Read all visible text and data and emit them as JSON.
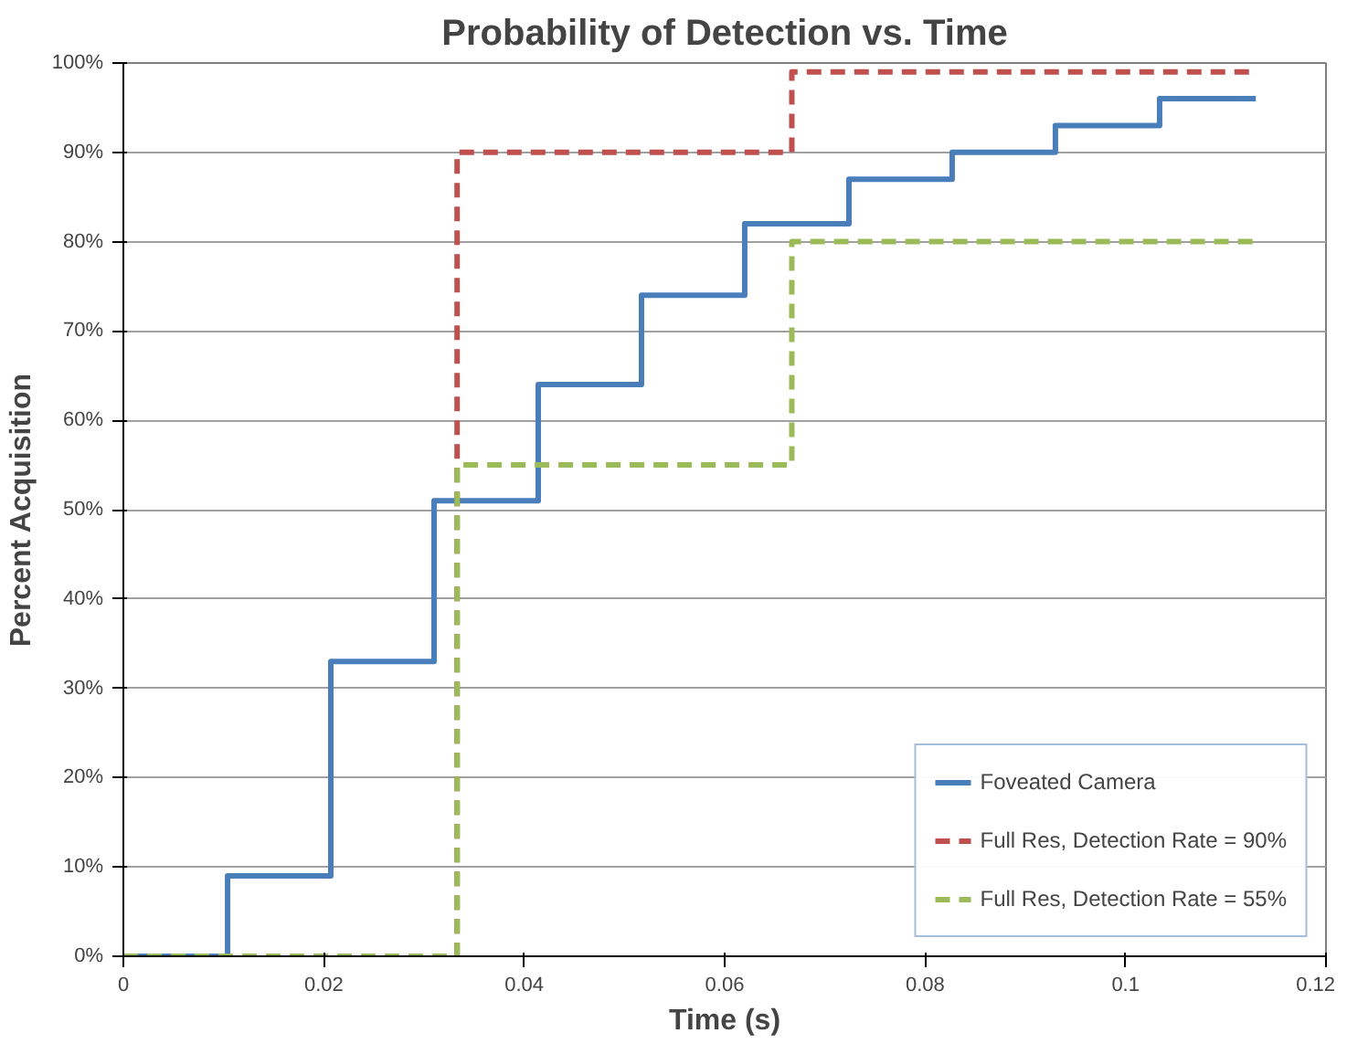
{
  "chart_data": {
    "type": "step",
    "title": "Probability of Detection vs. Time",
    "xlabel": "Time (s)",
    "ylabel": "Percent Acquisition",
    "xlim": [
      0,
      0.12
    ],
    "xticks": [
      0,
      0.02,
      0.04,
      0.06,
      0.08,
      0.1,
      0.12
    ],
    "ylim": [
      0,
      100
    ],
    "yticks": [
      {
        "value": 0,
        "label": "0%"
      },
      {
        "value": 10,
        "label": "10%"
      },
      {
        "value": 20,
        "label": "20%"
      },
      {
        "value": 30,
        "label": "30%"
      },
      {
        "value": 40,
        "label": "40%"
      },
      {
        "value": 50,
        "label": "50%"
      },
      {
        "value": 60,
        "label": "60%"
      },
      {
        "value": 70,
        "label": "70%"
      },
      {
        "value": 80,
        "label": "80%"
      },
      {
        "value": 90,
        "label": "90%"
      },
      {
        "value": 100,
        "label": "100%"
      }
    ],
    "grid": "y",
    "legend": "bottom right",
    "series": [
      {
        "name": "Foveated Camera",
        "color": "#4a7ebb",
        "line_style": "solid",
        "x": [
          0,
          0.0104,
          0.0207,
          0.031,
          0.0414,
          0.0517,
          0.062,
          0.0724,
          0.0827,
          0.093,
          0.1034,
          0.113
        ],
        "values": [
          0,
          9,
          33,
          51,
          64,
          74,
          82,
          87,
          90,
          93,
          96,
          96
        ]
      },
      {
        "name": "Full Res, Detection Rate = 90%",
        "color": "#c0504d",
        "line_style": "dashed",
        "x": [
          0,
          0.0333,
          0.0667,
          0.113
        ],
        "values": [
          0,
          90,
          99,
          99
        ]
      },
      {
        "name": "Full Res, Detection Rate = 55%",
        "color": "#9bbb59",
        "line_style": "dashed",
        "x": [
          0,
          0.0333,
          0.0667,
          0.113
        ],
        "values": [
          0,
          55,
          80,
          80
        ]
      }
    ]
  }
}
